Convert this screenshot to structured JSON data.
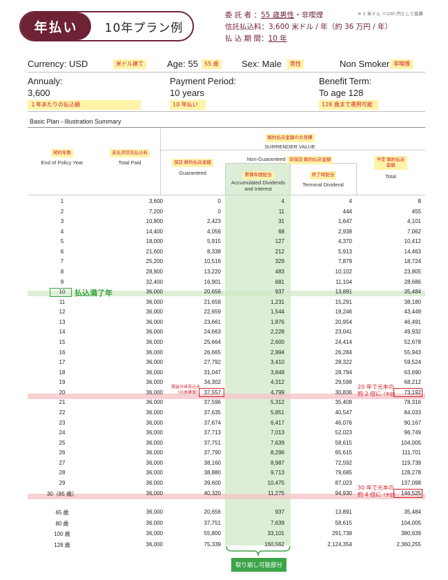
{
  "badge": {
    "left": "年払い",
    "right": "10年プラン例"
  },
  "header": {
    "line1_prefix": "委 託 者 ：",
    "line1_value": "55 歳男性",
    "line1_suffix": "・非喫煙",
    "line2": "信託払込料：3,600 米ドル / 年（約 36 万円 / 年）",
    "line3_prefix": "払 込 期 間：",
    "line3_value": "10 年",
    "note": "※ 1 米ドル ＝100 円として換算"
  },
  "info": {
    "currency": "Currency: USD",
    "currency_tag": "米ドル建て",
    "age": "Age: 55",
    "age_tag": "55 歳",
    "sex": "Sex: Male",
    "sex_tag": "男性",
    "smoker": "Non Smoker",
    "smoker_tag": "非喫煙",
    "annualy_label": "Annualy:",
    "annualy_value": "3,600",
    "annualy_tag": "１年あたりの払込額",
    "period_label": "Payment Period:",
    "period_value": "10 years",
    "period_tag": "10 年払い",
    "term_label": "Benefit Term:",
    "term_value": "To age 128",
    "term_tag": "128 歳まで運用可能"
  },
  "caption": "Basic Plan - Illustration Summary",
  "table": {
    "surrender_tag": "解約払戻金額のお見積",
    "surrender_en": "SURRENDER VALUE",
    "non_guaranteed": "Non-Guaranteed",
    "non_guaranteed_tag": "非保証 解約払戻金額",
    "col0_tag": "契約年数",
    "col0": "End of Policy Year",
    "col1_tag": "支払済信託払込料",
    "col1": "Total Paid",
    "col2_tag": "保証 解約払戻金額",
    "col2": "Guaranteed",
    "col3_tag": "累積年間配当",
    "col3": "Accumulated Dividends and Interest",
    "col4_tag": "終了時配当",
    "col4": "Terminal Dividend",
    "col5_tag": "予定 解約払戻金額",
    "col5": "Total",
    "rows": [
      [
        "1",
        "3,600",
        "0",
        "4",
        "4",
        "8"
      ],
      [
        "2",
        "7,200",
        "0",
        "11",
        "444",
        "455"
      ],
      [
        "3",
        "10,800",
        "2,423",
        "31",
        "1,647",
        "4,101"
      ],
      [
        "4",
        "14,400",
        "4,056",
        "68",
        "2,938",
        "7,062"
      ],
      [
        "5",
        "18,000",
        "5,915",
        "127",
        "4,370",
        "10,412"
      ],
      [
        "6",
        "21,600",
        "8,338",
        "212",
        "5,913",
        "14,463"
      ],
      [
        "7",
        "25,200",
        "10,516",
        "329",
        "7,879",
        "18,724"
      ],
      [
        "8",
        "28,800",
        "13,220",
        "483",
        "10,102",
        "23,805"
      ],
      [
        "9",
        "32,400",
        "16,901",
        "681",
        "11,104",
        "28,686"
      ],
      [
        "10",
        "36,000",
        "20,656",
        "937",
        "13,891",
        "35,484"
      ],
      [
        "11",
        "36,000",
        "21,658",
        "1,231",
        "15,291",
        "38,180"
      ],
      [
        "12",
        "36,000",
        "22,659",
        "1,544",
        "19,246",
        "43,449"
      ],
      [
        "13",
        "36,000",
        "23,661",
        "1,876",
        "20,954",
        "46,491"
      ],
      [
        "14",
        "36,000",
        "24,663",
        "2,228",
        "23,041",
        "49,932"
      ],
      [
        "15",
        "36,000",
        "25,664",
        "2,600",
        "24,414",
        "52,678"
      ],
      [
        "16",
        "36,000",
        "26,665",
        "2,994",
        "26,284",
        "55,943"
      ],
      [
        "17",
        "36,000",
        "27,792",
        "3,410",
        "28,322",
        "59,524"
      ],
      [
        "18",
        "36,000",
        "31,047",
        "3,849",
        "28,794",
        "63,690"
      ],
      [
        "19",
        "36,000",
        "34,302",
        "4,312",
        "29,598",
        "68,212"
      ],
      [
        "20",
        "36,000",
        "37,557",
        "4,799",
        "30,836",
        "73,192"
      ],
      [
        "21",
        "36,000",
        "37,596",
        "5,312",
        "35,408",
        "78,316"
      ],
      [
        "22",
        "36,000",
        "37,635",
        "5,851",
        "40,547",
        "84,033"
      ],
      [
        "23",
        "36,000",
        "37,674",
        "6,417",
        "46,076",
        "90,167"
      ],
      [
        "24",
        "36,000",
        "37,713",
        "7,013",
        "52,023",
        "96,749"
      ],
      [
        "25",
        "36,000",
        "37,751",
        "7,639",
        "58,615",
        "104,005"
      ],
      [
        "26",
        "36,000",
        "37,790",
        "8,296",
        "65,615",
        "111,701"
      ],
      [
        "27",
        "36,000",
        "38,160",
        "8,987",
        "72,592",
        "119,739"
      ],
      [
        "28",
        "36,000",
        "38,880",
        "9,713",
        "79,685",
        "128,278"
      ],
      [
        "29",
        "36,000",
        "39,600",
        "10,475",
        "87,023",
        "137,098"
      ],
      [
        "30（85 歳）",
        "36,000",
        "40,320",
        "11,275",
        "94,930",
        "146,525"
      ]
    ],
    "age_rows": [
      [
        "65 歳",
        "36,000",
        "20,656",
        "937",
        "13,891",
        "35,484"
      ],
      [
        "80 歳",
        "36,000",
        "37,751",
        "7,639",
        "58,615",
        "104,005"
      ],
      [
        "100 歳",
        "36,000",
        "55,800",
        "33,101",
        "291,738",
        "380,639"
      ],
      [
        "128 歳",
        "36,000",
        "75,339",
        "160,562",
        "2,124,354",
        "2,360,255"
      ]
    ]
  },
  "annotations": {
    "paid_full": "払込満了年",
    "guarantee_note1": "損益分岐見込み",
    "guarantee_note2": "（元本確保）",
    "double_1": "20 年で元本の",
    "double_2": "約 2 倍に",
    "quad_1": "30 年で元本の",
    "quad_2": "約 4 倍に",
    "planned": "（予定）",
    "withdraw": "取り崩し可能部分"
  },
  "colors": {
    "brand": "#6e2236",
    "accent_red": "#d0202a",
    "highlight_green": "#3ba548",
    "tag_yellow": "#fff3a8"
  }
}
